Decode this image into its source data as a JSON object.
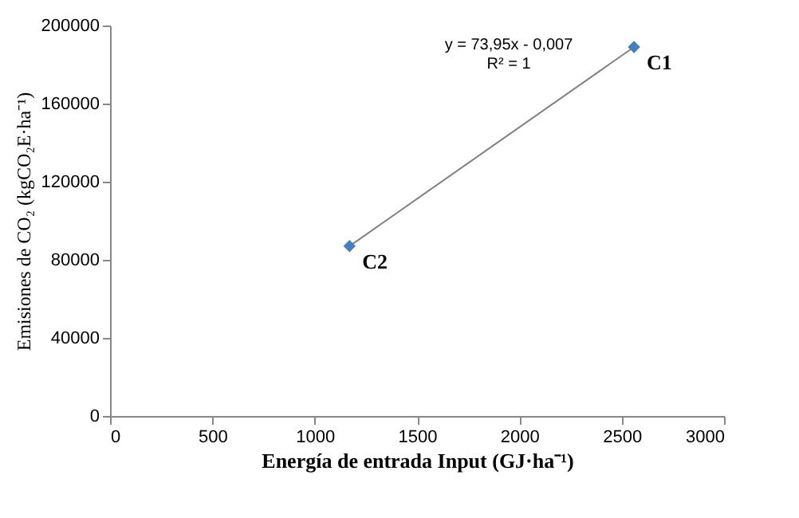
{
  "chart_data": {
    "type": "scatter",
    "xlabel": "Energía de entrada Input (GJ·ha⁻¹)",
    "ylabel": "Emisiones de CO₂ (kgCO₂E·ha⁻¹)",
    "series": [
      {
        "color": "#4a7ebb",
        "values": [
          87000,
          189000
        ]
      },
      {
        "type": "line",
        "marker": "none",
        "color": "#808080",
        "x": [
          1170,
          2560
        ],
        "values": [
          87000,
          189000
        ]
      }
    ],
    "x": [
      1170,
      2560
    ],
    "marker": "diamond",
    "xlim": [
      0,
      3000
    ],
    "xticks": [
      0,
      500,
      1000,
      1500,
      2000,
      2500,
      3000
    ],
    "ylim": [
      0,
      200000
    ],
    "yticks": [
      0,
      40000,
      80000,
      120000,
      160000,
      200000
    ],
    "grid": false,
    "annotations": [
      {
        "text": "C1",
        "x": 2560,
        "y": 189000
      },
      {
        "text": "C2",
        "x": 1170,
        "y": 87000
      },
      "y = 73,95x - 0,007",
      "R² = 1"
    ]
  }
}
